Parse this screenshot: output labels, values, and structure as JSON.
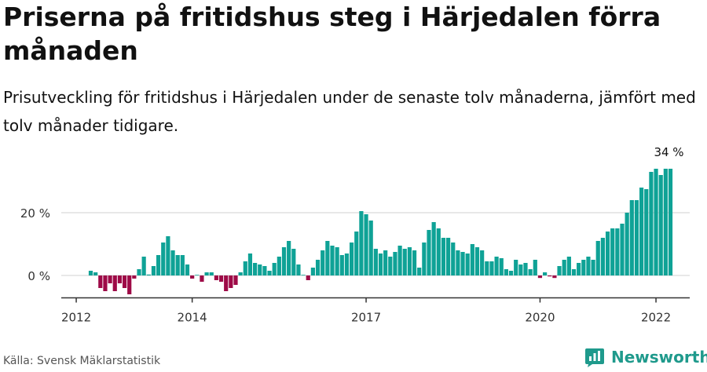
{
  "title": "Priserna på fritidshus steg i Härjedalen förra månaden",
  "subtitle": "Prisutveckling för fritidshus i Härjedalen under de senaste tolv månaderna, jämfört med tolv månader tidigare.",
  "source": "Källa: Svensk Mäklarstatistik",
  "brand": "Newsworthy",
  "colors": {
    "positive": "#0fa296",
    "negative": "#9e0a47",
    "grid": "#d9d9d9",
    "axis": "#333333",
    "brand": "#1f9a8c"
  },
  "chart_data": {
    "type": "bar",
    "x_start": "2012-04",
    "x_end": "2022-02",
    "x_ticks": [
      "2012",
      "2014",
      "2017",
      "2020",
      "2022"
    ],
    "y_ticks": [
      0,
      20
    ],
    "y_tick_labels": [
      "0 %",
      "20 %"
    ],
    "ylim": [
      -7,
      36
    ],
    "grid": true,
    "last_value_label": "34 %",
    "values": [
      1.5,
      1,
      -4,
      -5,
      -2.5,
      -5,
      -2.5,
      -4,
      -6,
      -1,
      2,
      6,
      0.3,
      3,
      6.5,
      10.5,
      12.5,
      8,
      6.5,
      6.5,
      3.5,
      -1,
      0,
      -2,
      1,
      1,
      -1.5,
      -2,
      -5,
      -4,
      -3,
      1,
      4.5,
      7,
      4,
      3.5,
      3,
      1.5,
      4,
      6,
      9,
      11,
      8.5,
      3.5,
      0,
      -1.5,
      2.5,
      5,
      8,
      11,
      9.5,
      9,
      6.5,
      7,
      10.5,
      14,
      20.5,
      19.5,
      17.5,
      8.5,
      7,
      8,
      6,
      7.5,
      9.5,
      8.5,
      9,
      8,
      2.5,
      10.5,
      14.5,
      17,
      15,
      12,
      12,
      10.5,
      8,
      7.5,
      7,
      10,
      9,
      8,
      4.5,
      4.5,
      6,
      5.5,
      2,
      1.5,
      5,
      3.5,
      4,
      2,
      5,
      -0.8,
      1,
      -0.3,
      -0.8,
      3,
      5,
      6,
      2,
      4,
      5,
      6,
      5,
      11,
      12,
      14,
      15,
      15,
      16.5,
      20,
      24,
      24,
      28,
      27.5,
      33,
      34,
      32,
      34,
      34
    ]
  }
}
